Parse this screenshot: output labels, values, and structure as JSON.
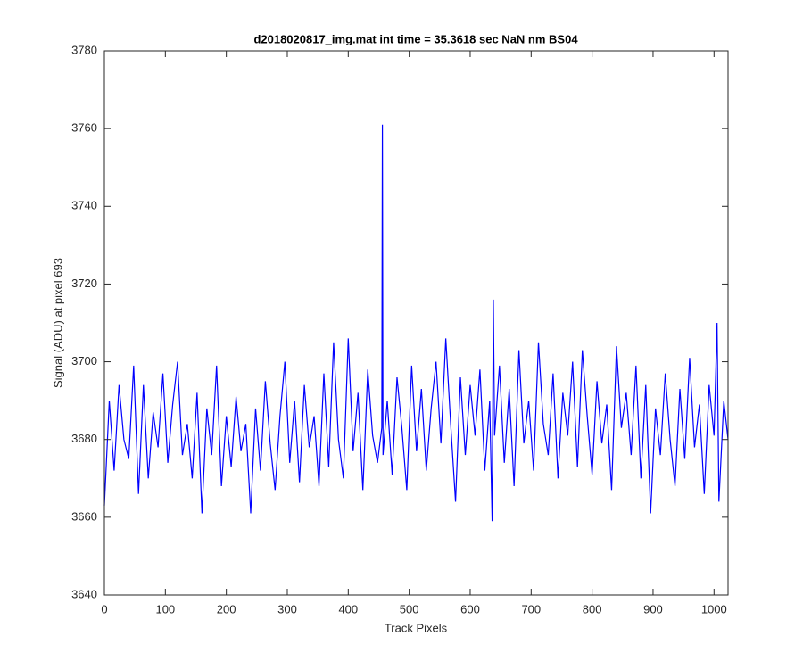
{
  "chart_data": {
    "type": "line",
    "title": "d2018020817_img.mat int time = 35.3618 sec  NaN nm BS04",
    "x_label": "Track Pixels",
    "y_label": "Signal (ADU) at pixel 693",
    "x": [
      0,
      8,
      16,
      24,
      32,
      40,
      48,
      56,
      64,
      72,
      80,
      88,
      96,
      104,
      112,
      120,
      128,
      136,
      144,
      152,
      160,
      168,
      176,
      184,
      192,
      200,
      208,
      216,
      224,
      232,
      240,
      248,
      256,
      264,
      272,
      280,
      288,
      296,
      304,
      312,
      320,
      328,
      336,
      344,
      352,
      360,
      368,
      376,
      384,
      392,
      400,
      408,
      416,
      424,
      432,
      440,
      448,
      455,
      456,
      457,
      464,
      472,
      480,
      488,
      496,
      504,
      512,
      520,
      528,
      536,
      544,
      552,
      560,
      568,
      576,
      584,
      592,
      600,
      608,
      616,
      624,
      632,
      636,
      638,
      640,
      648,
      656,
      664,
      672,
      680,
      688,
      696,
      704,
      712,
      720,
      728,
      736,
      744,
      752,
      760,
      768,
      776,
      784,
      792,
      800,
      808,
      816,
      824,
      832,
      840,
      848,
      856,
      864,
      872,
      880,
      888,
      896,
      904,
      912,
      920,
      928,
      936,
      944,
      952,
      960,
      968,
      976,
      984,
      992,
      1000,
      1005,
      1008,
      1016,
      1023
    ],
    "series": [
      {
        "color": "#0000ff",
        "values": [
          3663,
          3690,
          3672,
          3694,
          3680,
          3675,
          3699,
          3666,
          3694,
          3670,
          3687,
          3678,
          3697,
          3674,
          3689,
          3700,
          3676,
          3684,
          3670,
          3692,
          3661,
          3688,
          3676,
          3699,
          3668,
          3686,
          3673,
          3691,
          3677,
          3684,
          3661,
          3688,
          3672,
          3695,
          3679,
          3667,
          3686,
          3700,
          3674,
          3690,
          3669,
          3694,
          3678,
          3686,
          3668,
          3697,
          3673,
          3705,
          3680,
          3670,
          3706,
          3677,
          3692,
          3667,
          3698,
          3681,
          3674,
          3683,
          3761,
          3676,
          3690,
          3671,
          3696,
          3683,
          3667,
          3699,
          3677,
          3693,
          3672,
          3688,
          3700,
          3679,
          3706,
          3684,
          3664,
          3696,
          3676,
          3694,
          3681,
          3698,
          3672,
          3690,
          3659,
          3716,
          3681,
          3699,
          3674,
          3693,
          3668,
          3703,
          3679,
          3690,
          3672,
          3705,
          3684,
          3676,
          3697,
          3670,
          3692,
          3681,
          3700,
          3673,
          3703,
          3686,
          3671,
          3695,
          3679,
          3689,
          3667,
          3704,
          3683,
          3692,
          3676,
          3699,
          3670,
          3694,
          3661,
          3688,
          3676,
          3697,
          3680,
          3668,
          3693,
          3675,
          3701,
          3678,
          3689,
          3666,
          3694,
          3681,
          3710,
          3664,
          3690,
          3680
        ]
      }
    ],
    "xlim": [
      0,
      1023
    ],
    "xticks": [
      0,
      100,
      200,
      300,
      400,
      500,
      600,
      700,
      800,
      900,
      1000
    ],
    "ylim": [
      3640,
      3780
    ],
    "yticks": [
      3640,
      3660,
      3680,
      3700,
      3720,
      3740,
      3760,
      3780
    ]
  }
}
